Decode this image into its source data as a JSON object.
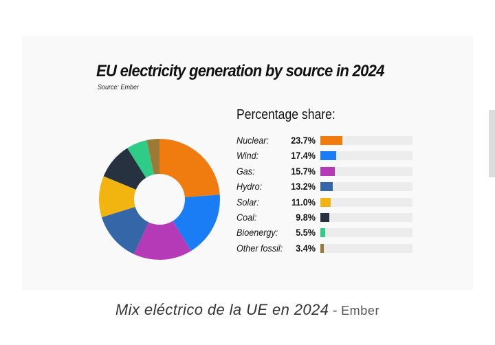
{
  "chart_data": {
    "type": "pie",
    "title": "EU electricity generation by source in 2024",
    "subtitle": "Source: Ember",
    "legend_heading": "Percentage share:",
    "categories": [
      "Nuclear:",
      "Wind:",
      "Gas:",
      "Hydro:",
      "Solar:",
      "Coal:",
      "Bioenergy:",
      "Other fossil:"
    ],
    "values": [
      23.7,
      17.4,
      15.7,
      13.2,
      11.0,
      9.8,
      5.5,
      3.4
    ],
    "value_labels": [
      "23.7%",
      "17.4%",
      "15.7%",
      "13.2%",
      "11.0%",
      "9.8%",
      "5.5%",
      "3.4%"
    ],
    "colors": [
      "#f07b0f",
      "#1a7df5",
      "#b43ab8",
      "#3566a8",
      "#f2b40f",
      "#26323f",
      "#2fcc87",
      "#9c7a36"
    ],
    "donut": true,
    "legend_placement": "right"
  },
  "caption": {
    "main": "Mix eléctrico de la UE en 2024",
    "separator": " - ",
    "credit": "Ember"
  }
}
